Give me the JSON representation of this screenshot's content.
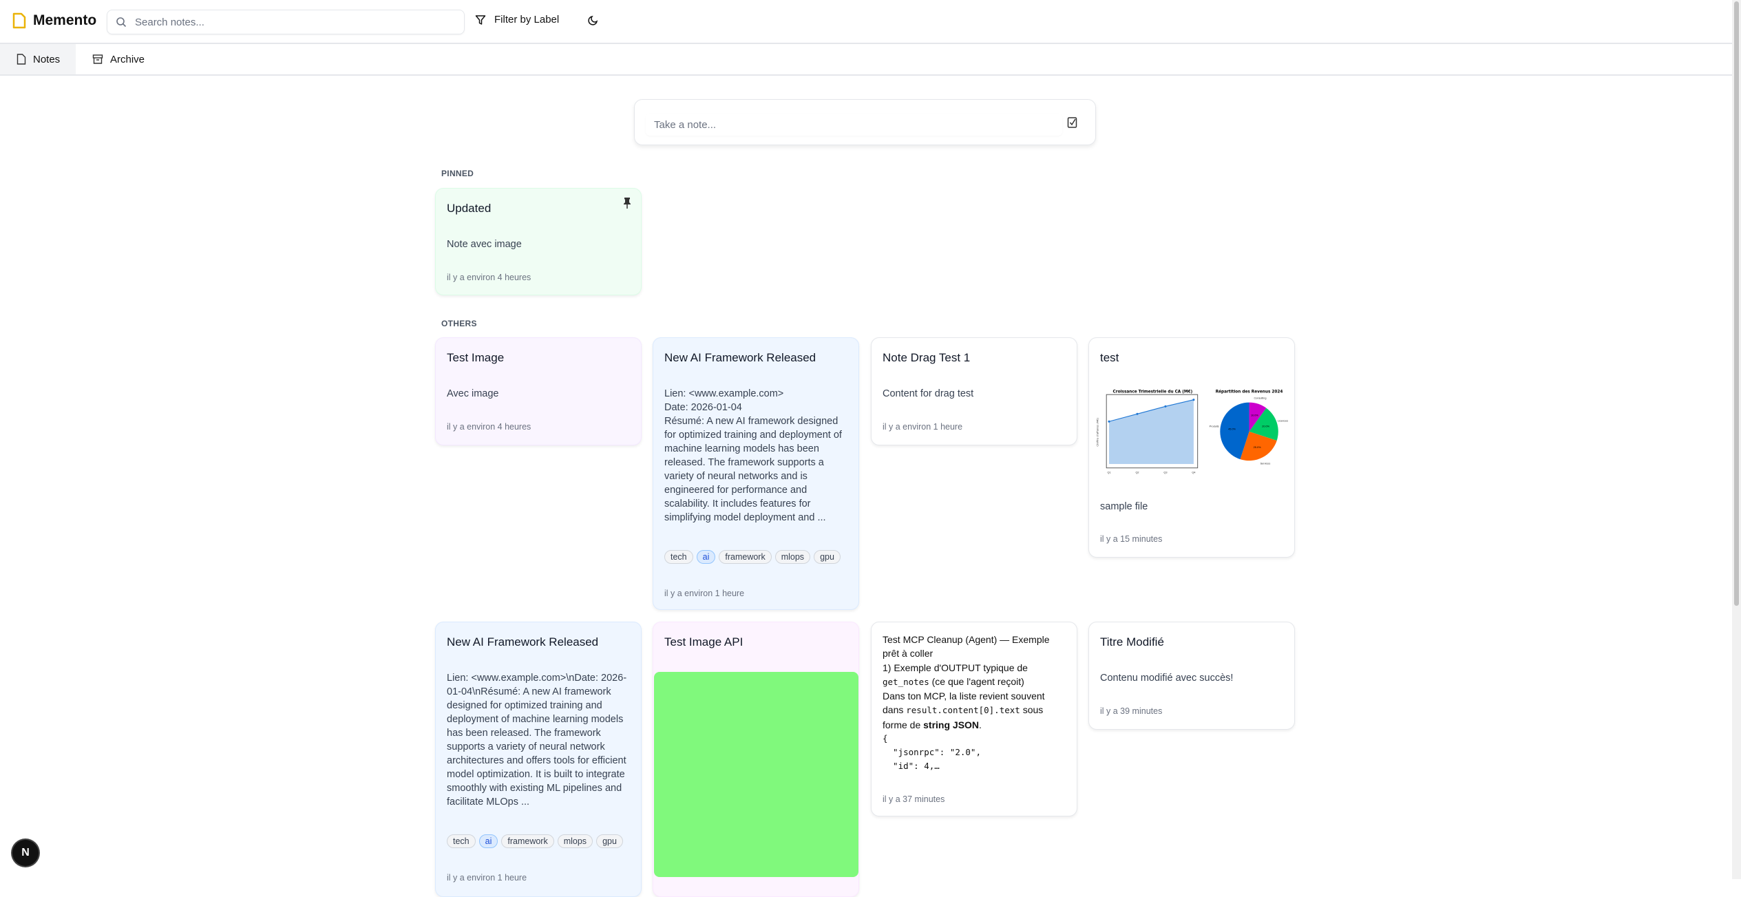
{
  "app": {
    "name": "Memento",
    "logo_icon": "note-file-icon",
    "brand_color": "#eab308"
  },
  "header": {
    "search_placeholder": "Search notes...",
    "filter_label": "Filter by Label",
    "theme_icon": "moon-icon"
  },
  "tabs": [
    {
      "label": "Notes",
      "icon": "file-icon",
      "active": true
    },
    {
      "label": "Archive",
      "icon": "archive-icon",
      "active": false
    }
  ],
  "composer": {
    "placeholder": "Take a note...",
    "checklist_icon": "checkbox-icon"
  },
  "sections": {
    "pinned": "PINNED",
    "others": "OTHERS"
  },
  "pinned": [
    {
      "title": "Updated",
      "body": "Note avec image",
      "time": "il y a environ 4 heures",
      "color": "#f0fdf4",
      "pinned": true
    }
  ],
  "notes": [
    {
      "title": "Test Image",
      "body": "Avec image",
      "time": "il y a environ 4 heures",
      "color": "#faf5ff"
    },
    {
      "title": "New AI Framework Released",
      "body_lines": [
        "Lien: <www.example.com>",
        "Date: 2026-01-04",
        "Résumé: A new AI framework designed for optimized training and deployment of machine learning models has been released. The framework supports a variety of neural networks and is engineered for performance and scalability. It includes features for simplifying model deployment and ..."
      ],
      "tags": [
        "tech",
        "ai",
        "framework",
        "mlops",
        "gpu"
      ],
      "time": "il y a environ 1 heure",
      "color": "#eff6ff"
    },
    {
      "title": "Note Drag Test 1",
      "body": "Content for drag test",
      "time": "il y a environ 1 heure",
      "color": "#ffffff"
    },
    {
      "title": "test",
      "body": "sample file",
      "time": "il y a 15 minutes",
      "color": "#ffffff",
      "image": {
        "line_title": "Croissance Trimestrielle du CA (M€)",
        "line_ylabel": "Chiffre d'affaires (M€)",
        "quarters": [
          "Q1",
          "Q2",
          "Q3",
          "Q4"
        ],
        "values": [
          45,
          53,
          61,
          68
        ],
        "pie_title": "Répartition des Revenus 2024",
        "slices": [
          {
            "label": "Consulting",
            "pct": "10.0%",
            "value": 10,
            "color": "#cc00cc"
          },
          {
            "label": "Licences",
            "pct": "20.0%",
            "value": 20,
            "color": "#00cc66"
          },
          {
            "label": "Services",
            "pct": "25.0%",
            "value": 25,
            "color": "#ff6600"
          },
          {
            "label": "Produits",
            "pct": "45.0%",
            "value": 45,
            "color": "#0066cc"
          }
        ]
      }
    },
    {
      "title": "New AI Framework Released",
      "body": "Lien: <www.example.com>\\nDate: 2026-01-04\\nRésumé: A new AI framework designed for optimized training and deployment of machine learning models has been released. The framework supports a variety of neural network architectures and offers tools for efficient model optimization. It is built to integrate smoothly with existing ML pipelines and facilitate MLOps ...",
      "tags": [
        "tech",
        "ai",
        "framework",
        "mlops",
        "gpu"
      ],
      "time": "il y a environ 1 heure",
      "color": "#eff6ff"
    },
    {
      "title": "Test Image API",
      "color": "#fdf4ff",
      "image_color": "#80f97c"
    },
    {
      "heading": "Test MCP Cleanup (Agent) — Exemple prêt à coller",
      "line1": "1) Exemple d'OUTPUT typique de",
      "code1": "get_notes",
      "line1b": " (ce que l'agent reçoit)",
      "line2": "Dans ton MCP, la liste revient souvent dans ",
      "code2": "result.content[0].text",
      "line2b": " sous forme de ",
      "bold": "string JSON",
      "line2c": ".",
      "json_lines": [
        "{",
        "  \"jsonrpc\": \"2.0\",",
        "  \"id\": 4,…"
      ],
      "time": "il y a 37 minutes",
      "color": "#ffffff"
    },
    {
      "title": "Titre Modifié",
      "body": "Contenu modifié avec succès!",
      "time": "il y a 39 minutes",
      "color": "#ffffff"
    }
  ],
  "floating": {
    "label": "N"
  }
}
